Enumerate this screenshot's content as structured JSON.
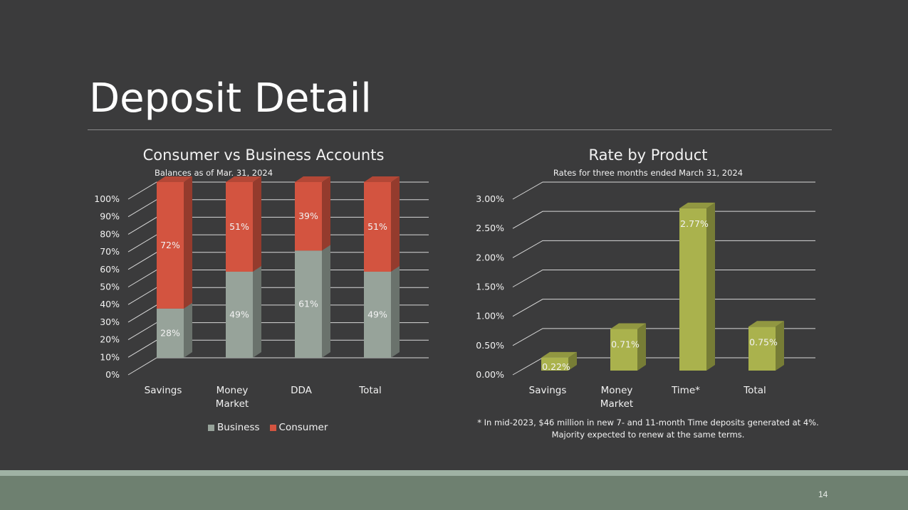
{
  "slide": {
    "title": "Deposit Detail",
    "page_number": "14"
  },
  "colors": {
    "business": "#97a39a",
    "consumer": "#d35440",
    "rate_bar": "#aab24d"
  },
  "chart_data": [
    {
      "type": "bar",
      "stacked": true,
      "title": "Consumer vs Business Accounts",
      "subtitle": "Balances as of Mar. 31, 2024",
      "categories": [
        "Savings",
        "Money Market",
        "DDA",
        "Total"
      ],
      "category_lines": [
        [
          "Savings"
        ],
        [
          "Money",
          "Market"
        ],
        [
          "DDA"
        ],
        [
          "Total"
        ]
      ],
      "series": [
        {
          "name": "Business",
          "values": [
            28,
            49,
            61,
            49
          ],
          "labels": [
            "28%",
            "49%",
            "61%",
            "49%"
          ]
        },
        {
          "name": "Consumer",
          "values": [
            72,
            51,
            39,
            51
          ],
          "labels": [
            "72%",
            "51%",
            "39%",
            "51%"
          ]
        }
      ],
      "ylim": [
        0,
        100
      ],
      "yticks": [
        "0%",
        "10%",
        "20%",
        "30%",
        "40%",
        "50%",
        "60%",
        "70%",
        "80%",
        "90%",
        "100%"
      ],
      "legend": "bottom",
      "grid": true
    },
    {
      "type": "bar",
      "title": "Rate by Product",
      "subtitle": "Rates for three months ended March 31, 2024",
      "categories": [
        "Savings",
        "Money Market",
        "Time*",
        "Total"
      ],
      "category_lines": [
        [
          "Savings"
        ],
        [
          "Money",
          "Market"
        ],
        [
          "Time*"
        ],
        [
          "Total"
        ]
      ],
      "values": [
        0.22,
        0.71,
        2.77,
        0.75
      ],
      "labels": [
        "0.22%",
        "0.71%",
        "2.77%",
        "0.75%"
      ],
      "ylim": [
        0,
        3
      ],
      "yticks": [
        "0.00%",
        "0.50%",
        "1.00%",
        "1.50%",
        "2.00%",
        "2.50%",
        "3.00%"
      ],
      "grid": true
    }
  ],
  "footnote": {
    "line1": "* In mid-2023, $46 million in new 7- and 11-month Time deposits generated at 4%.",
    "line2": "Majority expected to renew at the same terms."
  }
}
